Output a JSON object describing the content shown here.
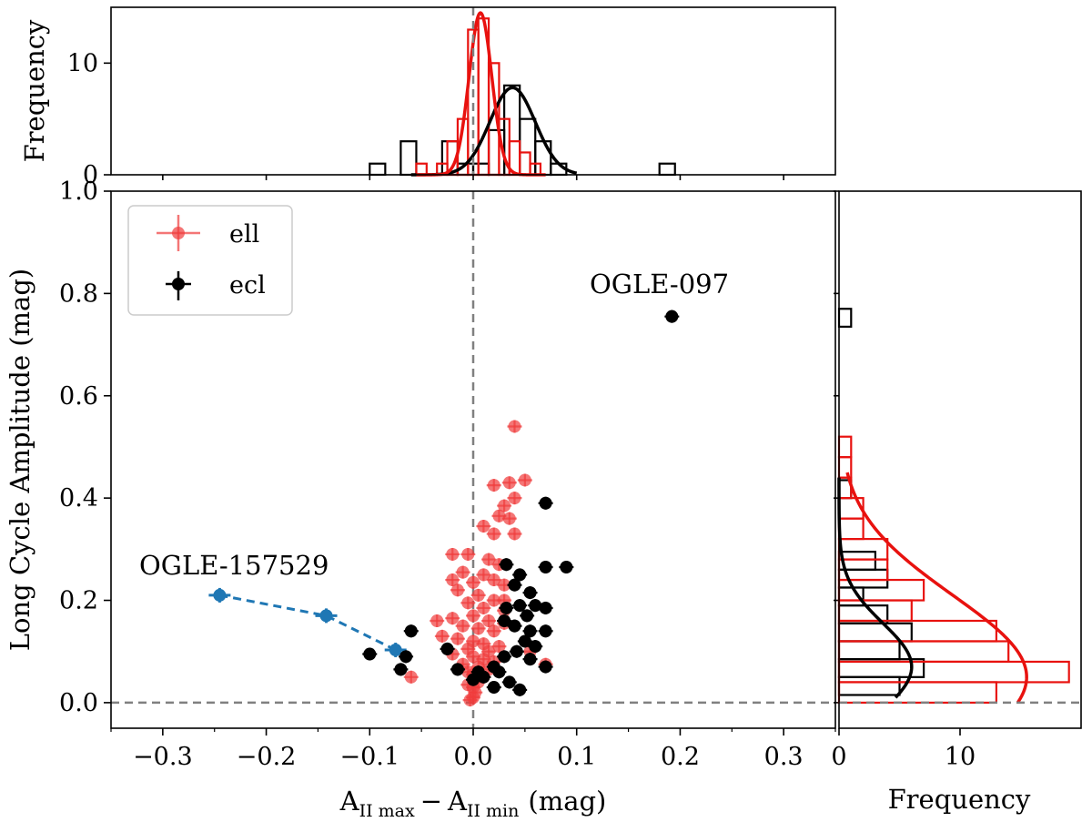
{
  "chart_data": [
    {
      "panel": "main-scatter",
      "type": "scatter",
      "xlabel_main": "A",
      "xlabel_sub_max": "II max",
      "xlabel_minus": "−",
      "xlabel_sub_min": "II min",
      "xlabel_unit": "(mag)",
      "ylabel": "Long Cycle Amplitude (mag)",
      "xlim": [
        -0.35,
        0.35
      ],
      "ylim": [
        -0.05,
        1.0
      ],
      "xticks": [
        -0.3,
        -0.2,
        -0.1,
        0.0,
        0.1,
        0.2,
        0.3
      ],
      "xtick_labels": [
        "−0.3",
        "−0.2",
        "−0.1",
        "0.0",
        "0.1",
        "0.2",
        "0.3"
      ],
      "yticks": [
        0.0,
        0.2,
        0.4,
        0.6,
        0.8,
        1.0
      ],
      "ytick_labels": [
        "0.0",
        "0.2",
        "0.4",
        "0.6",
        "0.8",
        "1.0"
      ],
      "reference_lines": {
        "vertical_x": 0.0,
        "horizontal_y": 0.0
      },
      "legend": {
        "placement": "top-left",
        "entries": [
          "ell",
          "ecl"
        ]
      },
      "annotations": [
        {
          "text": "OGLE-097",
          "x": 0.114,
          "y": 0.8
        },
        {
          "text": "OGLE-157529",
          "x": -0.322,
          "y": 0.265
        }
      ],
      "series": [
        {
          "name": "ell",
          "color": "#f03c3c",
          "points": [
            [
              0.04,
              0.54
            ],
            [
              0.05,
              0.435
            ],
            [
              0.035,
              0.43
            ],
            [
              0.02,
              0.425
            ],
            [
              0.04,
              0.4
            ],
            [
              0.03,
              0.385
            ],
            [
              0.025,
              0.365
            ],
            [
              0.035,
              0.36
            ],
            [
              0.01,
              0.345
            ],
            [
              0.04,
              0.33
            ],
            [
              0.02,
              0.33
            ],
            [
              -0.02,
              0.29
            ],
            [
              -0.005,
              0.29
            ],
            [
              0.015,
              0.28
            ],
            [
              0.025,
              0.27
            ],
            [
              -0.01,
              0.255
            ],
            [
              0.01,
              0.25
            ],
            [
              -0.02,
              0.24
            ],
            [
              0.02,
              0.24
            ],
            [
              0.0,
              0.235
            ],
            [
              0.03,
              0.23
            ],
            [
              -0.015,
              0.22
            ],
            [
              0.005,
              0.21
            ],
            [
              0.02,
              0.2
            ],
            [
              -0.005,
              0.195
            ],
            [
              0.01,
              0.185
            ],
            [
              0.03,
              0.18
            ],
            [
              0.0,
              0.17
            ],
            [
              -0.02,
              0.165
            ],
            [
              0.015,
              0.16
            ],
            [
              0.03,
              0.155
            ],
            [
              -0.01,
              0.15
            ],
            [
              0.005,
              0.145
            ],
            [
              0.02,
              0.14
            ],
            [
              -0.03,
              0.13
            ],
            [
              -0.015,
              0.125
            ],
            [
              0.0,
              0.12
            ],
            [
              0.01,
              0.115
            ],
            [
              0.025,
              0.11
            ],
            [
              -0.005,
              0.105
            ],
            [
              0.015,
              0.1
            ],
            [
              -0.02,
              0.095
            ],
            [
              0.0,
              0.09
            ],
            [
              0.01,
              0.085
            ],
            [
              0.02,
              0.08
            ],
            [
              -0.01,
              0.075
            ],
            [
              0.005,
              0.07
            ],
            [
              0.015,
              0.065
            ],
            [
              -0.005,
              0.06
            ],
            [
              0.0,
              0.055
            ],
            [
              0.01,
              0.05
            ],
            [
              0.005,
              0.04
            ],
            [
              -0.005,
              0.035
            ],
            [
              0.0,
              0.03
            ],
            [
              0.002,
              0.02
            ],
            [
              0.0,
              0.01
            ],
            [
              -0.003,
              0.005
            ],
            [
              -0.06,
              0.05
            ],
            [
              0.07,
              0.075
            ],
            [
              0.055,
              0.1
            ],
            [
              -0.035,
              0.16
            ],
            [
              0.03,
              0.2
            ]
          ]
        },
        {
          "name": "ecl",
          "color": "#000000",
          "points": [
            [
              0.192,
              0.755
            ],
            [
              0.07,
              0.39
            ],
            [
              0.09,
              0.265
            ],
            [
              0.07,
              0.265
            ],
            [
              0.032,
              0.27
            ],
            [
              0.045,
              0.25
            ],
            [
              0.04,
              0.23
            ],
            [
              0.055,
              0.215
            ],
            [
              0.045,
              0.19
            ],
            [
              0.06,
              0.19
            ],
            [
              0.07,
              0.185
            ],
            [
              0.032,
              0.185
            ],
            [
              0.052,
              0.17
            ],
            [
              0.03,
              0.16
            ],
            [
              0.04,
              0.15
            ],
            [
              0.055,
              0.14
            ],
            [
              0.07,
              0.14
            ],
            [
              0.05,
              0.12
            ],
            [
              0.06,
              0.11
            ],
            [
              0.042,
              0.1
            ],
            [
              0.03,
              0.09
            ],
            [
              0.055,
              0.085
            ],
            [
              0.07,
              0.07
            ],
            [
              0.02,
              0.07
            ],
            [
              0.025,
              0.06
            ],
            [
              0.035,
              0.04
            ],
            [
              0.045,
              0.025
            ],
            [
              0.02,
              0.03
            ],
            [
              0.01,
              0.05
            ],
            [
              0.005,
              0.06
            ],
            [
              -0.015,
              0.065
            ],
            [
              -0.06,
              0.14
            ],
            [
              -0.1,
              0.095
            ],
            [
              -0.065,
              0.09
            ],
            [
              -0.07,
              0.065
            ],
            [
              -0.025,
              0.105
            ],
            [
              0.0,
              0.045
            ]
          ]
        },
        {
          "name": "OGLE-157529 track",
          "color": "#1f77b4",
          "points": [
            [
              -0.245,
              0.21
            ],
            [
              -0.142,
              0.17
            ],
            [
              -0.075,
              0.103
            ]
          ]
        }
      ]
    },
    {
      "panel": "top-histogram",
      "type": "histogram",
      "ylabel": "Frequency",
      "ylim": [
        0,
        15
      ],
      "yticks": [
        0,
        10
      ],
      "ytick_labels": [
        "0",
        "10"
      ],
      "ecl_bins": [
        {
          "x0": -0.1,
          "x1": -0.085,
          "count": 1
        },
        {
          "x0": -0.07,
          "x1": -0.055,
          "count": 3
        },
        {
          "x0": -0.03,
          "x1": -0.015,
          "count": 3
        },
        {
          "x0": -0.015,
          "x1": 0.0,
          "count": 1
        },
        {
          "x0": 0.0,
          "x1": 0.015,
          "count": 1
        },
        {
          "x0": 0.015,
          "x1": 0.03,
          "count": 4
        },
        {
          "x0": 0.03,
          "x1": 0.045,
          "count": 8
        },
        {
          "x0": 0.045,
          "x1": 0.06,
          "count": 5
        },
        {
          "x0": 0.06,
          "x1": 0.075,
          "count": 3
        },
        {
          "x0": 0.075,
          "x1": 0.09,
          "count": 1
        },
        {
          "x0": 0.18,
          "x1": 0.195,
          "count": 1
        }
      ],
      "ell_bins": [
        {
          "x0": -0.055,
          "x1": -0.045,
          "count": 1
        },
        {
          "x0": -0.035,
          "x1": -0.025,
          "count": 1
        },
        {
          "x0": -0.025,
          "x1": -0.015,
          "count": 3
        },
        {
          "x0": -0.015,
          "x1": -0.005,
          "count": 5
        },
        {
          "x0": -0.005,
          "x1": 0.005,
          "count": 13
        },
        {
          "x0": 0.005,
          "x1": 0.015,
          "count": 14
        },
        {
          "x0": 0.015,
          "x1": 0.025,
          "count": 10
        },
        {
          "x0": 0.025,
          "x1": 0.035,
          "count": 5
        },
        {
          "x0": 0.035,
          "x1": 0.045,
          "count": 3
        },
        {
          "x0": 0.045,
          "x1": 0.055,
          "count": 2
        },
        {
          "x0": 0.055,
          "x1": 0.065,
          "count": 1
        }
      ],
      "ecl_fit": {
        "amp": 7.8,
        "mu": 0.038,
        "sigma": 0.022
      },
      "ell_fit": {
        "amp": 14.5,
        "mu": 0.007,
        "sigma": 0.011
      }
    },
    {
      "panel": "right-histogram",
      "type": "histogram",
      "orientation": "horizontal",
      "xlabel": "Frequency",
      "xlim": [
        0,
        20
      ],
      "xticks": [
        0,
        10
      ],
      "xtick_labels": [
        "0",
        "10"
      ],
      "ecl_bins": [
        {
          "y0": 0.015,
          "y1": 0.05,
          "count": 5
        },
        {
          "y0": 0.05,
          "y1": 0.085,
          "count": 7
        },
        {
          "y0": 0.085,
          "y1": 0.12,
          "count": 5
        },
        {
          "y0": 0.12,
          "y1": 0.155,
          "count": 6
        },
        {
          "y0": 0.155,
          "y1": 0.19,
          "count": 4
        },
        {
          "y0": 0.19,
          "y1": 0.225,
          "count": 2
        },
        {
          "y0": 0.225,
          "y1": 0.26,
          "count": 4
        },
        {
          "y0": 0.26,
          "y1": 0.295,
          "count": 3
        },
        {
          "y0": 0.365,
          "y1": 0.4,
          "count": 0
        },
        {
          "y0": 0.4,
          "y1": 0.435,
          "count": 1
        },
        {
          "y0": 0.735,
          "y1": 0.77,
          "count": 1
        }
      ],
      "ell_bins": [
        {
          "y0": 0.0,
          "y1": 0.04,
          "count": 13
        },
        {
          "y0": 0.04,
          "y1": 0.08,
          "count": 19
        },
        {
          "y0": 0.08,
          "y1": 0.12,
          "count": 14
        },
        {
          "y0": 0.12,
          "y1": 0.16,
          "count": 13
        },
        {
          "y0": 0.16,
          "y1": 0.2,
          "count": 6
        },
        {
          "y0": 0.2,
          "y1": 0.24,
          "count": 7
        },
        {
          "y0": 0.24,
          "y1": 0.28,
          "count": 4
        },
        {
          "y0": 0.28,
          "y1": 0.32,
          "count": 4
        },
        {
          "y0": 0.32,
          "y1": 0.36,
          "count": 2
        },
        {
          "y0": 0.36,
          "y1": 0.4,
          "count": 2
        },
        {
          "y0": 0.4,
          "y1": 0.44,
          "count": 1
        },
        {
          "y0": 0.44,
          "y1": 0.48,
          "count": 1
        },
        {
          "y0": 0.48,
          "y1": 0.52,
          "count": 1
        }
      ],
      "ecl_fit": {
        "amp": 6.0,
        "mu": 0.07,
        "sigma": 0.085
      },
      "ell_fit": {
        "amp": 15.5,
        "mu": 0.05,
        "sigma": 0.16
      },
      "fit_range": [
        0.02,
        0.44
      ]
    }
  ]
}
